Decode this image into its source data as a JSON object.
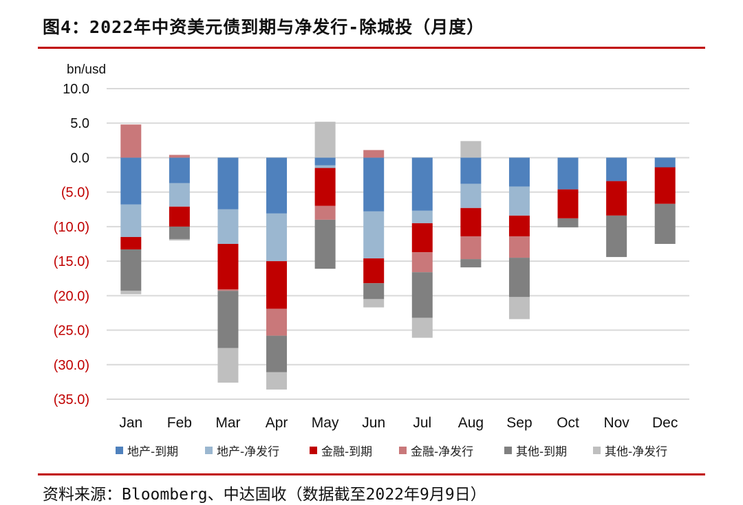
{
  "title": "图4：2022年中资美元债到期与净发行-除城投（月度）",
  "source": "资料来源：Bloomberg、中达固收（数据截至2022年9月9日）",
  "chart_data": {
    "type": "bar",
    "stacked": true,
    "ylabel": "bn/usd",
    "ylim": [
      -35,
      10
    ],
    "yticks": [
      10,
      5,
      0,
      -5,
      -10,
      -15,
      -20,
      -25,
      -30,
      -35
    ],
    "ytick_labels": [
      "10.0",
      "5.0",
      "0.0",
      "(5.0)",
      "(10.0)",
      "(15.0)",
      "(20.0)",
      "(25.0)",
      "(30.0)",
      "(35.0)"
    ],
    "negative_tick_color": "#c00000",
    "grid": true,
    "legend_position": "bottom",
    "categories": [
      "Jan",
      "Feb",
      "Mar",
      "Apr",
      "May",
      "Jun",
      "Jul",
      "Aug",
      "Sep",
      "Oct",
      "Nov",
      "Dec"
    ],
    "series": [
      {
        "name": "地产-到期",
        "color": "#4f81bd",
        "values": [
          -6.8,
          -3.7,
          -7.5,
          -8.1,
          -1.1,
          -7.8,
          -7.7,
          -3.8,
          -4.2,
          -4.6,
          -3.4,
          -1.4
        ]
      },
      {
        "name": "地产-净发行",
        "color": "#9bb7d0",
        "values": [
          -4.7,
          -3.4,
          -5.0,
          -6.9,
          -0.4,
          -6.8,
          -1.8,
          -3.5,
          -4.2,
          0,
          0,
          0
        ]
      },
      {
        "name": "金融-到期",
        "color": "#c00000",
        "values": [
          -1.8,
          -2.9,
          -6.6,
          -6.9,
          -5.5,
          -3.6,
          -4.2,
          -4.1,
          -3.0,
          -4.2,
          -5.0,
          -5.3
        ]
      },
      {
        "name": "金融-净发行",
        "color": "#c9787a",
        "values": [
          4.8,
          0.4,
          -0.2,
          -3.9,
          -2.0,
          1.1,
          -2.9,
          -3.3,
          -3.1,
          0,
          0,
          0
        ]
      },
      {
        "name": "其他-到期",
        "color": "#808080",
        "values": [
          -6.0,
          -1.8,
          -8.3,
          -5.3,
          -7.1,
          -2.3,
          -6.6,
          -1.2,
          -5.7,
          -1.3,
          -6.0,
          -5.8
        ]
      },
      {
        "name": "其他-净发行",
        "color": "#bfbfbf",
        "values": [
          -0.5,
          -0.2,
          -5.0,
          -2.5,
          5.2,
          -1.2,
          -2.9,
          2.4,
          -3.2,
          0,
          0,
          0
        ]
      }
    ]
  }
}
